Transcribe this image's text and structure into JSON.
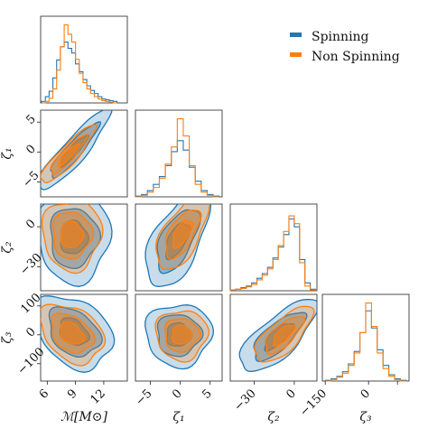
{
  "chart_data": {
    "type": "corner",
    "parameters": [
      {
        "key": "mc",
        "label": "ℳ[M⊙]",
        "ticks": [
          6,
          9,
          12
        ],
        "range": [
          5.3,
          14.5
        ]
      },
      {
        "key": "z1",
        "label": "ζ₁",
        "ticks": [
          -5,
          0,
          5
        ],
        "range": [
          -7.5,
          7
        ]
      },
      {
        "key": "z2",
        "label": "ζ₂",
        "ticks": [
          -30,
          0
        ],
        "range": [
          -48,
          17
        ]
      },
      {
        "key": "z3",
        "label": "ζ₃",
        "ticks": [
          -150,
          0,
          100
        ],
        "ticks_y": [
          -100,
          0,
          100
        ],
        "tick_labels_x": [
          "−150",
          "0",
          ""
        ],
        "range": [
          -160,
          140
        ]
      }
    ],
    "series": [
      {
        "name": "Spinning",
        "color": "#1f77b4"
      },
      {
        "name": "Non Spinning",
        "color": "#ff7f0e"
      }
    ],
    "histograms": {
      "mc": {
        "x": [
          5.6,
          6.0,
          6.4,
          6.8,
          7.2,
          7.6,
          8.0,
          8.4,
          8.8,
          9.2,
          9.6,
          10.0,
          10.4,
          10.8,
          11.2,
          11.6,
          12.0,
          12.4,
          12.8,
          13.2
        ],
        "Spinning": [
          0.02,
          0.08,
          0.15,
          0.32,
          0.55,
          0.72,
          0.78,
          0.7,
          0.64,
          0.5,
          0.4,
          0.3,
          0.22,
          0.16,
          0.12,
          0.08,
          0.05,
          0.04,
          0.03,
          0.02
        ],
        "Non Spinning": [
          0.0,
          0.02,
          0.06,
          0.18,
          0.42,
          0.72,
          1.0,
          0.88,
          0.78,
          0.56,
          0.38,
          0.26,
          0.18,
          0.12,
          0.08,
          0.05,
          0.03,
          0.02,
          0.01,
          0.0
        ]
      },
      "z1": {
        "x": [
          -7,
          -6,
          -5,
          -4,
          -3,
          -2,
          -1,
          0,
          1,
          2,
          3,
          4,
          5,
          6
        ],
        "Spinning": [
          0.01,
          0.03,
          0.08,
          0.16,
          0.26,
          0.4,
          0.58,
          0.72,
          0.6,
          0.38,
          0.2,
          0.08,
          0.03,
          0.01
        ],
        "Non Spinning": [
          0.0,
          0.02,
          0.06,
          0.12,
          0.24,
          0.42,
          0.64,
          1.0,
          0.78,
          0.4,
          0.16,
          0.06,
          0.02,
          0.0
        ]
      },
      "z2": {
        "x": [
          -46,
          -42,
          -38,
          -34,
          -30,
          -26,
          -22,
          -18,
          -14,
          -10,
          -6,
          -2,
          2,
          6,
          10,
          14
        ],
        "Spinning": [
          0.01,
          0.02,
          0.04,
          0.06,
          0.1,
          0.16,
          0.22,
          0.3,
          0.42,
          0.56,
          0.72,
          0.92,
          0.82,
          0.4,
          0.1,
          0.02
        ],
        "Non Spinning": [
          0.01,
          0.02,
          0.03,
          0.05,
          0.08,
          0.14,
          0.2,
          0.28,
          0.4,
          0.58,
          0.76,
          0.96,
          0.86,
          0.36,
          0.06,
          0.01
        ]
      },
      "z3": {
        "x": [
          -140,
          -120,
          -100,
          -80,
          -60,
          -40,
          -20,
          0,
          20,
          40,
          60,
          80,
          100,
          120
        ],
        "Spinning": [
          0.01,
          0.03,
          0.06,
          0.12,
          0.22,
          0.38,
          0.62,
          0.9,
          0.68,
          0.4,
          0.2,
          0.08,
          0.03,
          0.01
        ],
        "Non Spinning": [
          0.0,
          0.02,
          0.05,
          0.1,
          0.2,
          0.36,
          0.62,
          1.0,
          0.7,
          0.36,
          0.16,
          0.06,
          0.02,
          0.0
        ]
      }
    },
    "contour_levels": [
      "39%",
      "86%",
      "99%"
    ],
    "pairs": [
      {
        "x": "mc",
        "y": "z1",
        "Spinning": {
          "center": [
            8.8,
            0.2
          ],
          "slope": 1.6,
          "spread": [
            1.6,
            1.2
          ]
        },
        "Non Spinning": {
          "center": [
            8.2,
            -0.5
          ],
          "slope": 1.5,
          "spread": [
            1.2,
            0.9
          ]
        }
      },
      {
        "x": "mc",
        "y": "z2",
        "Spinning": {
          "center": [
            8.8,
            -8
          ],
          "slope": 0.0,
          "spread": [
            1.6,
            14
          ]
        },
        "Non Spinning": {
          "center": [
            8.6,
            -6
          ],
          "slope": 0.0,
          "spread": [
            1.3,
            11
          ]
        }
      },
      {
        "x": "z1",
        "y": "z2",
        "Spinning": {
          "center": [
            -0.5,
            -10
          ],
          "slope": 4.0,
          "spread": [
            2.2,
            12
          ]
        },
        "Non Spinning": {
          "center": [
            0.3,
            -5
          ],
          "slope": 4.0,
          "spread": [
            1.8,
            9
          ]
        }
      },
      {
        "x": "mc",
        "y": "z3",
        "Spinning": {
          "center": [
            8.8,
            10
          ],
          "slope": -10,
          "spread": [
            1.7,
            50
          ]
        },
        "Non Spinning": {
          "center": [
            8.6,
            5
          ],
          "slope": -10,
          "spread": [
            1.4,
            40
          ]
        }
      },
      {
        "x": "z1",
        "y": "z3",
        "Spinning": {
          "center": [
            -0.3,
            0
          ],
          "slope": 0,
          "spread": [
            2.3,
            45
          ]
        },
        "Non Spinning": {
          "center": [
            0.2,
            0
          ],
          "slope": 0,
          "spread": [
            1.8,
            36
          ]
        }
      },
      {
        "x": "z2",
        "y": "z3",
        "Spinning": {
          "center": [
            -12,
            -5
          ],
          "slope": 3.2,
          "spread": [
            12,
            35
          ]
        },
        "Non Spinning": {
          "center": [
            -8,
            0
          ],
          "slope": 3.2,
          "spread": [
            9,
            28
          ]
        }
      }
    ],
    "legend_position": "top-right"
  }
}
